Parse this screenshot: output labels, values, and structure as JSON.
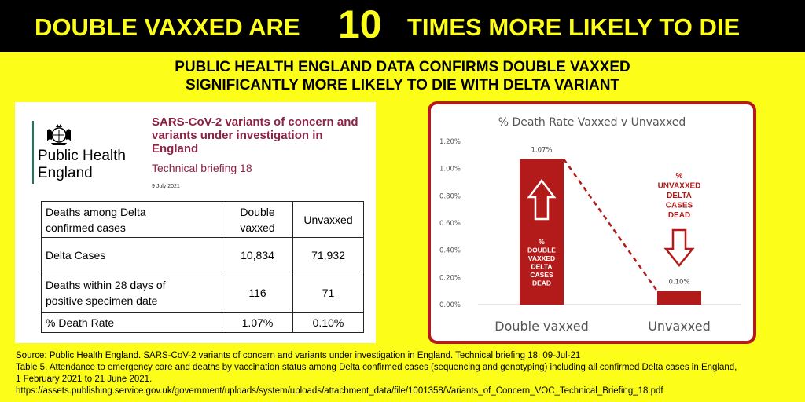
{
  "banner": {
    "left": "DOUBLE VAXXED ARE",
    "number": "10",
    "right": "TIMES MORE LIKELY TO DIE"
  },
  "subheading": {
    "line1": "PUBLIC HEALTH ENGLAND DATA CONFIRMS DOUBLE VAXXED",
    "line2": "SIGNIFICANTLY MORE LIKELY TO DIE WITH DELTA VARIANT"
  },
  "phe": {
    "name_line1": "Public Health",
    "name_line2": "England",
    "title_line1": "SARS-CoV-2 variants of concern and",
    "title_line2": "variants under investigation in",
    "title_line3": "England",
    "briefing": "Technical briefing 18",
    "date": "9 July 2021",
    "table": {
      "header": {
        "label_line1": "Deaths among Delta",
        "label_line2": "confirmed cases",
        "col1_line1": "Double",
        "col1_line2": "vaxxed",
        "col2": "Unvaxxed"
      },
      "rows": [
        {
          "label_line1": "Delta Cases",
          "label_line2": "",
          "double": "10,834",
          "unvaxxed": "71,932"
        },
        {
          "label_line1": "Deaths within 28 days of",
          "label_line2": "positive specimen date",
          "double": "116",
          "unvaxxed": "71"
        },
        {
          "label_line1": "% Death Rate",
          "label_line2": "",
          "double": "1.07%",
          "unvaxxed": "0.10%"
        }
      ]
    }
  },
  "chart_data": {
    "type": "bar",
    "title": "% Death Rate Vaxxed v Unvaxxed",
    "categories": [
      "Double vaxxed",
      "Unvaxxed"
    ],
    "values": [
      1.07,
      0.1
    ],
    "data_labels": [
      "1.07%",
      "0.10%"
    ],
    "ylim": [
      0,
      1.2
    ],
    "yticks": [
      0,
      0.2,
      0.4,
      0.6,
      0.8,
      1.0,
      1.2
    ],
    "ytick_labels": [
      "0.00%",
      "0.20%",
      "0.40%",
      "0.60%",
      "0.80%",
      "1.00%",
      "1.20%"
    ],
    "xlabel": "",
    "ylabel": "",
    "grid": false,
    "bar_color": "#b31b1b",
    "annotations": {
      "double": [
        "%",
        "DOUBLE",
        "VAXXED",
        "DELTA",
        "CASES",
        "DEAD"
      ],
      "unvaxxed": [
        "%",
        "UNVAXXED",
        "DELTA",
        "CASES",
        "DEAD"
      ]
    }
  },
  "source": {
    "line1": "Source:  Public Health England.  SARS-CoV-2 variants of concern and variants under investigation in England.  Technical briefing 18. 09-Jul-21",
    "line2": "Table 5. Attendance to emergency care and deaths by vaccination status among Delta confirmed cases (sequencing and genotyping) including all confirmed Delta cases in England,",
    "line3": "1 February 2021 to 21 June 2021.",
    "line4": "https://assets.publishing.service.gov.uk/government/uploads/system/uploads/attachment_data/file/1001358/Variants_of_Concern_VOC_Technical_Briefing_18.pdf"
  },
  "colors": {
    "background": "#fdfd1a",
    "banner": "#000000",
    "accent_red": "#b31b1b",
    "phe_title": "#8b2343"
  }
}
